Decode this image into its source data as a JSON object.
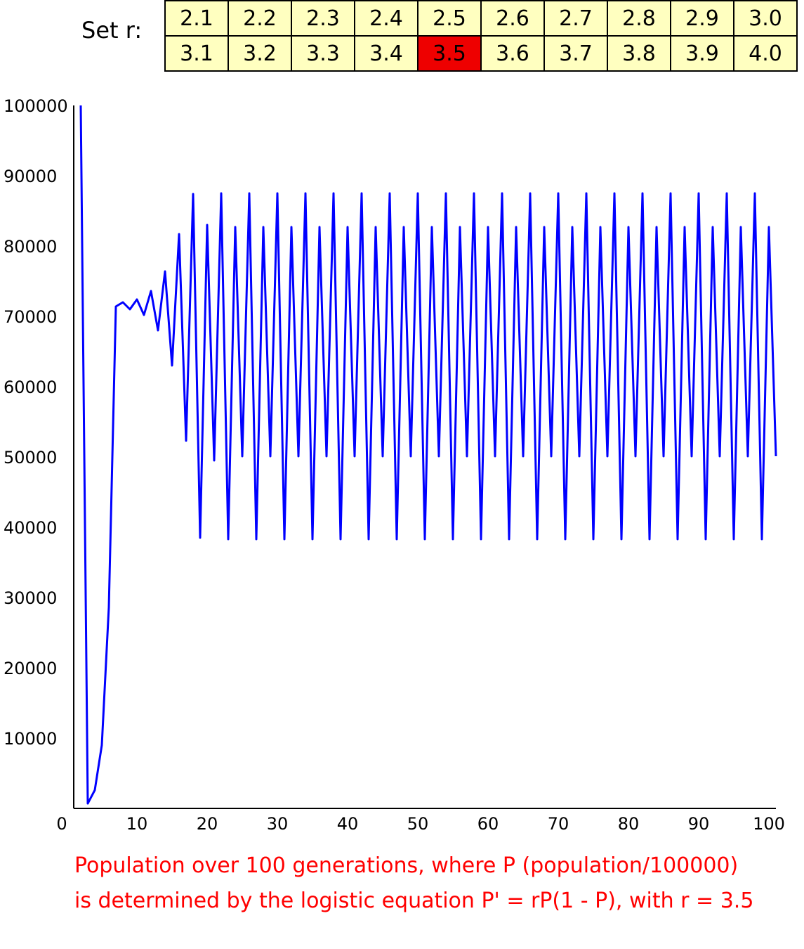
{
  "selector": {
    "label": "Set r:",
    "rows": [
      [
        "2.1",
        "2.2",
        "2.3",
        "2.4",
        "2.5",
        "2.6",
        "2.7",
        "2.8",
        "2.9",
        "3.0"
      ],
      [
        "3.1",
        "3.2",
        "3.3",
        "3.4",
        "3.5",
        "3.6",
        "3.7",
        "3.8",
        "3.9",
        "4.0"
      ]
    ],
    "selected": "3.5",
    "cell_color": "#ffffc0",
    "selected_color": "#ee0000"
  },
  "caption": {
    "line1": "Population over 100 generations, where P (population/100000)",
    "line2": "is determined by the logistic equation P' = rP(1 - P), with r = 3.5",
    "color": "#ff0000"
  },
  "chart_data": {
    "type": "line",
    "title": "",
    "xlabel": "",
    "ylabel": "",
    "xlim": [
      0,
      100
    ],
    "ylim": [
      0,
      100000
    ],
    "x_ticks": [
      0,
      10,
      20,
      30,
      40,
      50,
      60,
      70,
      80,
      90,
      100
    ],
    "y_ticks": [
      10000,
      20000,
      30000,
      40000,
      50000,
      60000,
      70000,
      80000,
      90000,
      100000
    ],
    "grid": false,
    "line_color": "#0000ff",
    "series": [
      {
        "x": [
          1,
          2,
          3,
          4,
          5,
          6,
          7,
          8,
          9,
          10,
          11,
          12,
          13,
          14,
          15,
          16,
          17,
          18,
          19,
          20,
          21,
          22,
          23,
          24,
          25,
          26,
          27,
          28,
          29,
          30,
          31,
          32,
          33,
          34,
          35,
          36,
          37,
          38,
          39,
          40,
          41,
          42,
          43,
          44,
          45,
          46,
          47,
          48,
          49,
          50,
          51,
          52,
          53,
          54,
          55,
          56,
          57,
          58,
          59,
          60,
          61,
          62,
          63,
          64,
          65,
          66,
          67,
          68,
          69,
          70,
          71,
          72,
          73,
          74,
          75,
          76,
          77,
          78,
          79,
          80,
          81,
          82,
          83,
          84,
          85,
          86,
          87,
          88,
          89,
          90,
          91,
          92,
          93,
          94,
          95,
          96,
          97,
          98,
          99,
          100
        ],
        "values": [
          100000,
          700,
          2600,
          9000,
          28600,
          71400,
          72000,
          71000,
          72400,
          70200,
          73600,
          68000,
          76400,
          63000,
          81700,
          52300,
          87400,
          38500,
          83000,
          49500,
          87500,
          38300,
          82700,
          50100,
          87500,
          38300,
          82700,
          50100,
          87500,
          38300,
          82700,
          50100,
          87500,
          38300,
          82700,
          50100,
          87500,
          38300,
          82700,
          50100,
          87500,
          38300,
          82700,
          50100,
          87500,
          38300,
          82700,
          50100,
          87500,
          38300,
          82700,
          50100,
          87500,
          38300,
          82700,
          50100,
          87500,
          38300,
          82700,
          50100,
          87500,
          38300,
          82700,
          50100,
          87500,
          38300,
          82700,
          50100,
          87500,
          38300,
          82700,
          50100,
          87500,
          38300,
          82700,
          50100,
          87500,
          38300,
          82700,
          50100,
          87500,
          38300,
          82700,
          50100,
          87500,
          38300,
          82700,
          50100,
          87500,
          38300,
          82700,
          50100,
          87500,
          38300,
          82700,
          50100,
          87500,
          38300,
          82700,
          50100
        ]
      }
    ]
  }
}
